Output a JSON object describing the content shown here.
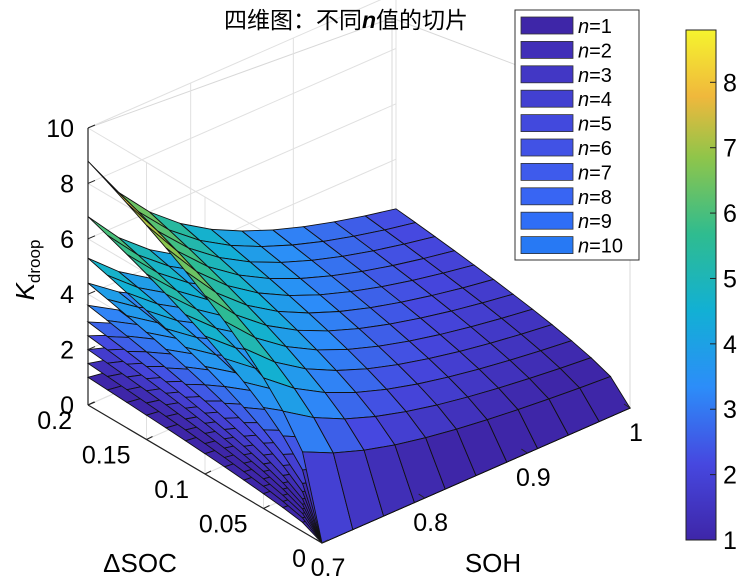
{
  "chart_data": {
    "type": "surface",
    "title": "四维图：不同n值的切片",
    "title_parts": {
      "before": "四维图：不同",
      "var": "n",
      "after": "值的切片"
    },
    "xlabel": "SOH",
    "ylabel": "ΔSOC",
    "zlabel": {
      "main": "K",
      "sub": "droop"
    },
    "xlim": [
      0.7,
      1.0
    ],
    "ylim": [
      0,
      0.2
    ],
    "zlim": [
      0,
      10
    ],
    "x_ticks": [
      "0.7",
      "0.8",
      "0.9",
      "1"
    ],
    "y_ticks": [
      "0",
      "0.05",
      "0.1",
      "0.15",
      "0.2"
    ],
    "z_ticks": [
      "0",
      "2",
      "4",
      "6",
      "8",
      "10"
    ],
    "grid": true,
    "legend_position": "top-right",
    "colormap": "parula",
    "colorbar": {
      "range": [
        1,
        8.8
      ],
      "ticks": [
        "1",
        "2",
        "3",
        "4",
        "5",
        "6",
        "7",
        "8"
      ]
    },
    "series": [
      {
        "name": "n=1",
        "n": 1,
        "k_max": 1.0,
        "color": "#3e26a8"
      },
      {
        "name": "n=2",
        "n": 2,
        "k_max": 1.5,
        "color": "#412fb8"
      },
      {
        "name": "n=3",
        "n": 3,
        "k_max": 2.0,
        "color": "#4237c5"
      },
      {
        "name": "n=4",
        "n": 4,
        "k_max": 2.5,
        "color": "#4240d1"
      },
      {
        "name": "n=5",
        "n": 5,
        "k_max": 3.0,
        "color": "#4249dd"
      },
      {
        "name": "n=6",
        "n": 6,
        "k_max": 3.6,
        "color": "#4152e5"
      },
      {
        "name": "n=7",
        "n": 7,
        "k_max": 4.4,
        "color": "#3e5bec"
      },
      {
        "name": "n=8",
        "n": 8,
        "k_max": 5.3,
        "color": "#3865f3"
      },
      {
        "name": "n=9",
        "n": 9,
        "k_max": 6.8,
        "color": "#2f6ef7"
      },
      {
        "name": "n=10",
        "n": 10,
        "k_max": 8.8,
        "color": "#2779f4"
      }
    ]
  }
}
